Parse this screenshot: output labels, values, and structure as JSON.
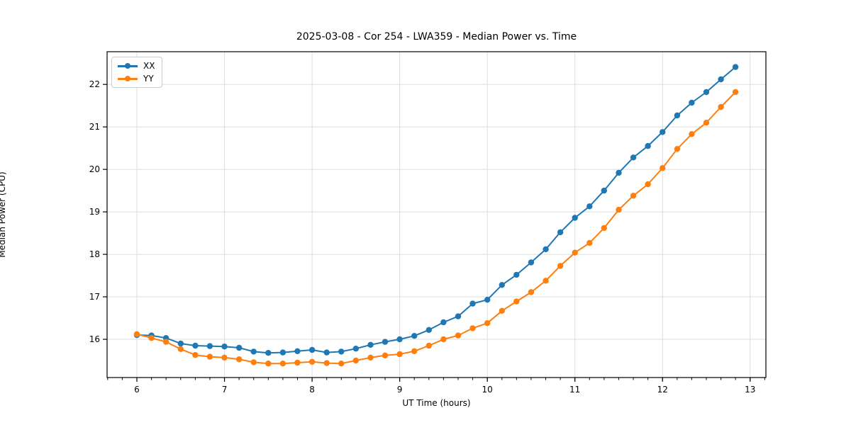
{
  "chart_data": {
    "type": "line",
    "title": "2025-03-08 - Cor 254 - LWA359 - Median Power vs. Time",
    "xlabel": "UT Time (hours)",
    "ylabel": "Median Power (CPU)",
    "xlim": [
      5.66,
      13.18
    ],
    "ylim": [
      15.1,
      22.77
    ],
    "xticks": [
      6,
      7,
      8,
      9,
      10,
      11,
      12,
      13
    ],
    "yticks": [
      16,
      17,
      18,
      19,
      20,
      21,
      22
    ],
    "x_minor_step": 0.166667,
    "grid": true,
    "grid_color": "#dddddd",
    "spine_color": "#000000",
    "legend_position": "upper-left",
    "x": [
      6.0,
      6.167,
      6.333,
      6.5,
      6.667,
      6.833,
      7.0,
      7.167,
      7.333,
      7.5,
      7.667,
      7.833,
      8.0,
      8.167,
      8.333,
      8.5,
      8.667,
      8.833,
      9.0,
      9.167,
      9.333,
      9.5,
      9.667,
      9.833,
      10.0,
      10.167,
      10.333,
      10.5,
      10.667,
      10.833,
      11.0,
      11.167,
      11.333,
      11.5,
      11.667,
      11.833,
      12.0,
      12.167,
      12.333,
      12.5,
      12.667,
      12.833
    ],
    "series": [
      {
        "name": "XX",
        "color": "#1f77b4",
        "values": [
          16.1,
          16.09,
          16.03,
          15.9,
          15.85,
          15.84,
          15.83,
          15.8,
          15.71,
          15.68,
          15.69,
          15.72,
          15.75,
          15.69,
          15.71,
          15.78,
          15.87,
          15.94,
          16.0,
          16.08,
          16.22,
          16.4,
          16.54,
          16.84,
          16.93,
          17.28,
          17.52,
          17.81,
          18.12,
          18.52,
          18.86,
          19.13,
          19.5,
          19.92,
          20.28,
          20.55,
          20.88,
          21.27,
          21.57,
          21.82,
          22.12,
          22.41
        ]
      },
      {
        "name": "YY",
        "color": "#ff7f0e",
        "values": [
          16.12,
          16.03,
          15.94,
          15.77,
          15.63,
          15.59,
          15.57,
          15.53,
          15.46,
          15.43,
          15.43,
          15.45,
          15.47,
          15.44,
          15.43,
          15.5,
          15.57,
          15.62,
          15.65,
          15.72,
          15.85,
          16.0,
          16.09,
          16.26,
          16.38,
          16.67,
          16.89,
          17.11,
          17.38,
          17.73,
          18.04,
          18.27,
          18.62,
          19.05,
          19.38,
          19.65,
          20.03,
          20.48,
          20.83,
          21.1,
          21.47,
          21.82
        ]
      }
    ]
  }
}
